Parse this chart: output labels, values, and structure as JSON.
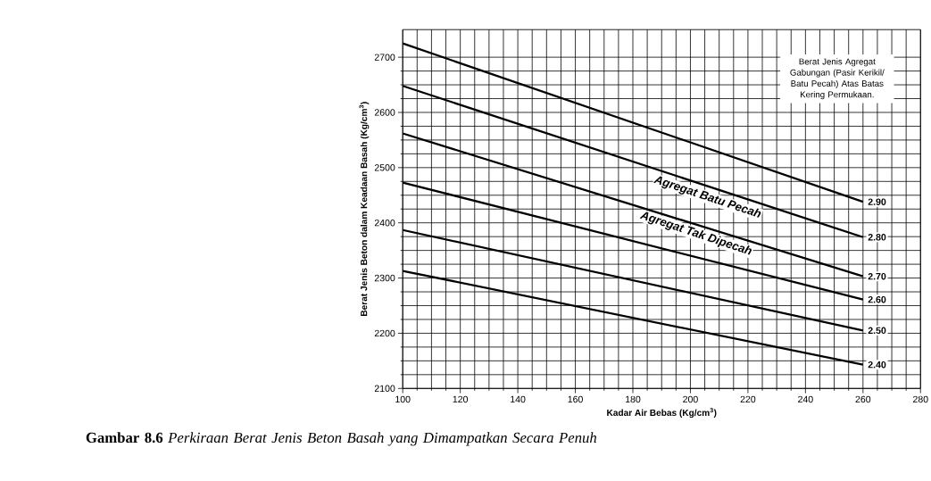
{
  "chart_data": {
    "type": "line",
    "title": "**Gambar 8.6** *Perkiraan Berat Jenis Beton Basah yang Dimampatkan Secara Penuh*",
    "xlabel": "Kadar Air Bebas (Kg/cm$^{3}$)",
    "ylabel": "Berat Jenis Beton dalam Keadaan Basah (Kg/cm$^{3}$)",
    "x": [
      100,
      260
    ],
    "series": [
      {
        "name": "2.90",
        "color": "#000000",
        "values": [
          2725,
          2438
        ]
      },
      {
        "name": "2.80",
        "color": "#000000",
        "values": [
          2648,
          2374
        ]
      },
      {
        "name": "2.70",
        "color": "#000000",
        "values": [
          2562,
          2303
        ]
      },
      {
        "name": "2.60",
        "color": "#000000",
        "values": [
          2473,
          2261
        ]
      },
      {
        "name": "2.50",
        "color": "#000000",
        "values": [
          2387,
          2205
        ]
      },
      {
        "name": "2.40",
        "color": "#000000",
        "values": [
          2313,
          2143
        ]
      }
    ],
    "annotations": [
      "Berat Jenis Agregat Gabungan (Pasir Kerikil/ Batu Pecah) Atas Batas Kering Permukaan.",
      "Agregat Batu Pecah",
      "Agregat Tak Dipecah"
    ],
    "xlim": [
      100,
      280
    ],
    "ylim": [
      2100,
      2750
    ],
    "xticks": [
      100,
      120,
      140,
      160,
      180,
      200,
      220,
      240,
      260,
      280
    ],
    "yticks": [
      2100,
      2200,
      2300,
      2400,
      2500,
      2600,
      2700
    ],
    "grid": true,
    "marker": "none",
    "line_style": "solid"
  }
}
